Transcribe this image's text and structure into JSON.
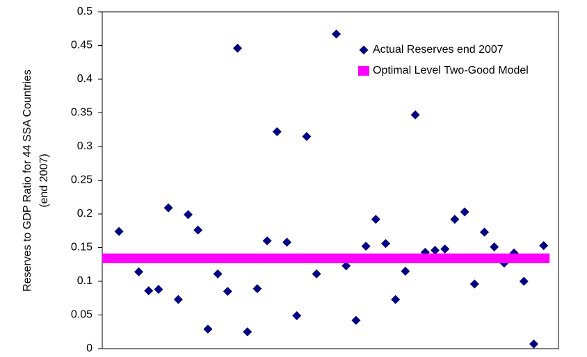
{
  "chart_data": {
    "type": "scatter",
    "ylabel": [
      "Reserves to GDP Ratio for 44 SSA Countries",
      "(end 2007)"
    ],
    "xlim": [
      -0.7,
      45.5
    ],
    "ylim": [
      0,
      0.5
    ],
    "yticks": [
      0,
      0.05,
      0.1,
      0.15,
      0.2,
      0.25,
      0.3,
      0.35,
      0.4,
      0.45,
      0.5
    ],
    "legend": "upper right",
    "series": [
      {
        "name": "Actual Reserves end 2007",
        "color": "#000080",
        "kind": "scatter",
        "x": [
          1,
          2,
          3,
          4,
          5,
          6,
          7,
          8,
          9,
          10,
          11,
          12,
          13,
          14,
          15,
          16,
          17,
          18,
          19,
          20,
          21,
          22,
          23,
          24,
          25,
          26,
          27,
          28,
          29,
          30,
          31,
          32,
          33,
          34,
          35,
          36,
          37,
          38,
          39,
          40,
          41,
          42,
          43,
          44
        ],
        "values": [
          0.174,
          null,
          0.114,
          0.086,
          0.088,
          0.209,
          0.073,
          0.199,
          0.176,
          0.029,
          0.111,
          0.085,
          0.446,
          0.025,
          0.089,
          0.16,
          0.322,
          0.158,
          0.049,
          0.315,
          0.111,
          null,
          0.467,
          0.123,
          0.042,
          0.152,
          0.192,
          0.156,
          0.073,
          0.115,
          0.347,
          0.143,
          0.146,
          0.148,
          0.192,
          0.203,
          0.096,
          0.173,
          0.151,
          0.127,
          0.142,
          0.1,
          0.007,
          0.153
        ]
      },
      {
        "name": "Optimal Level Two-Good Model",
        "color": "#ff00ff",
        "kind": "line",
        "x": [
          -0.7,
          44.6
        ],
        "values": [
          0.134,
          0.134
        ]
      }
    ]
  }
}
